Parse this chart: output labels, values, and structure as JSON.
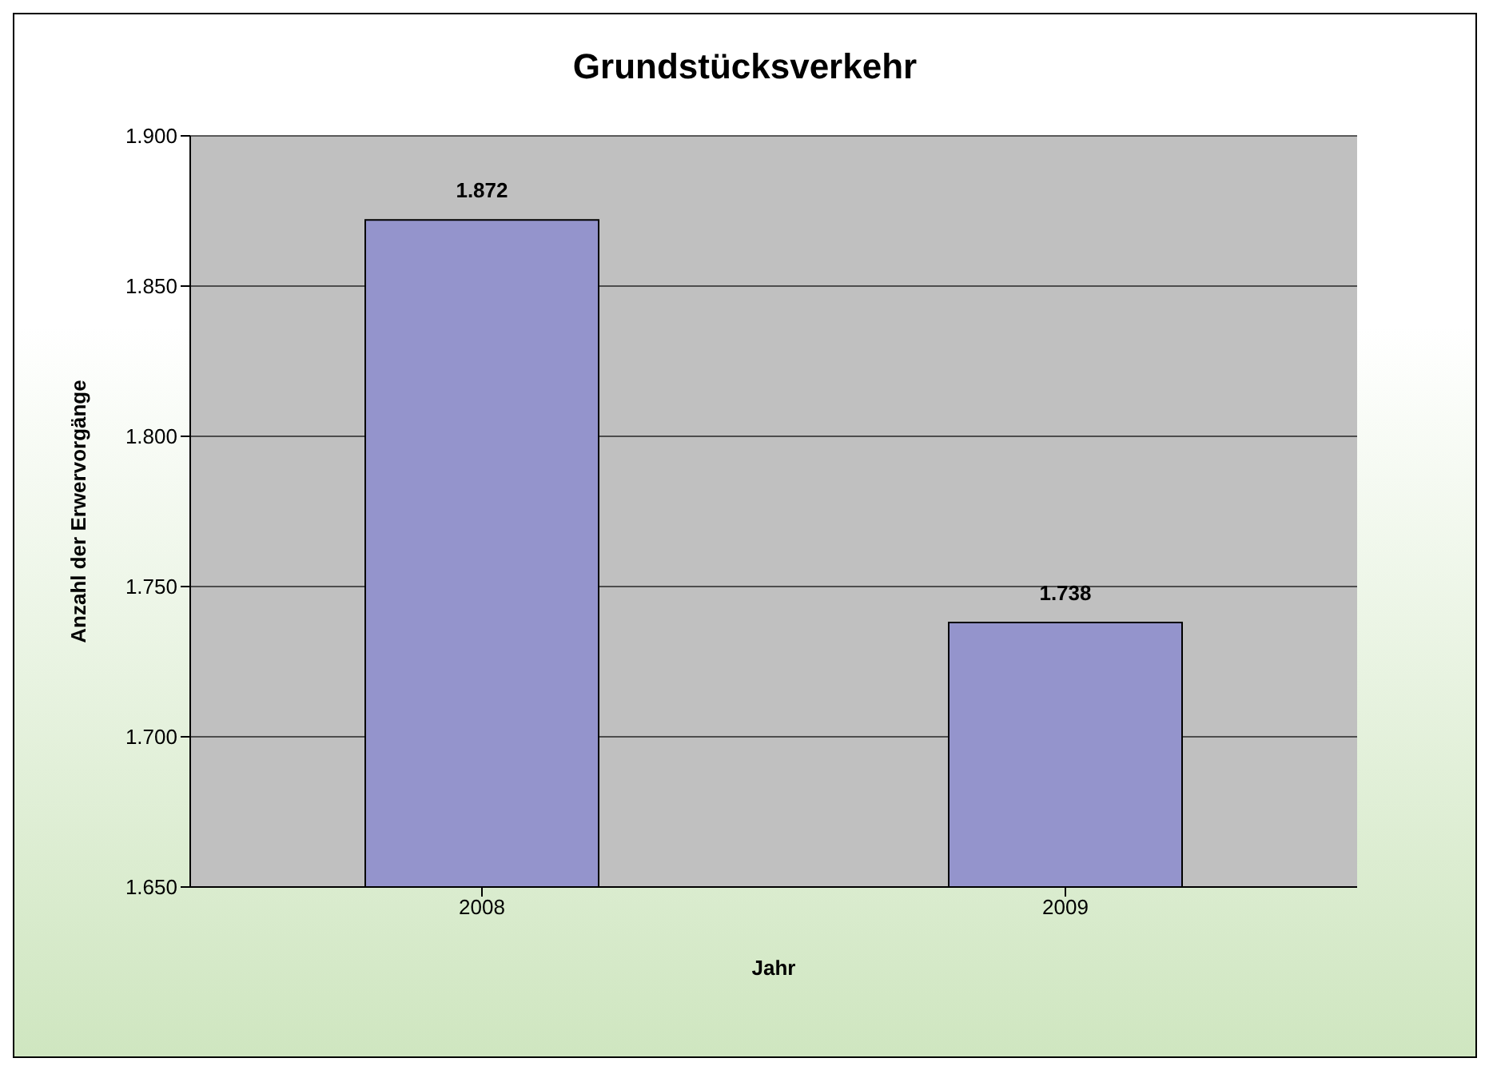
{
  "chart_data": {
    "type": "bar",
    "title": "Grundstücksverkehr",
    "xlabel": "Jahr",
    "ylabel": "Anzahl der Erwervorgänge",
    "categories": [
      "2008",
      "2009"
    ],
    "values": [
      1872,
      1738
    ],
    "value_labels": [
      "1.872",
      "1.738"
    ],
    "color": "#9494cc",
    "ylim": [
      1650,
      1900
    ],
    "yticks": [
      {
        "value": 1650,
        "label": "1.650"
      },
      {
        "value": 1700,
        "label": "1.700"
      },
      {
        "value": 1750,
        "label": "1.750"
      },
      {
        "value": 1800,
        "label": "1.800"
      },
      {
        "value": 1850,
        "label": "1.850"
      },
      {
        "value": 1900,
        "label": "1.900"
      }
    ],
    "grid": "y"
  }
}
